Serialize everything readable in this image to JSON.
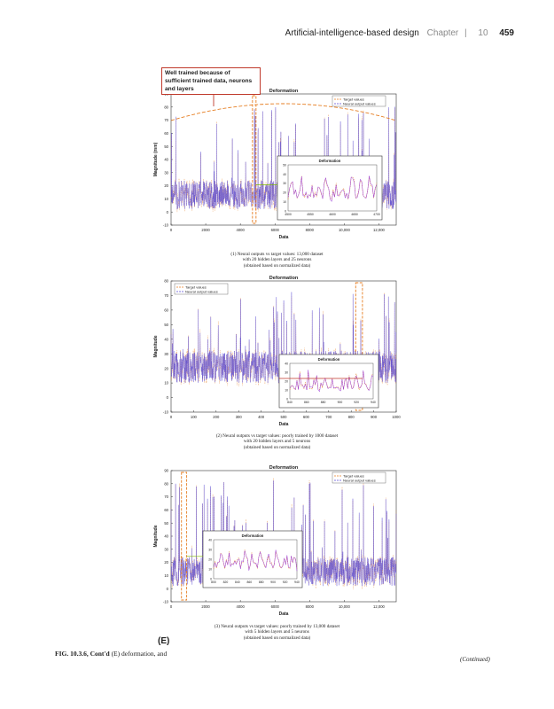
{
  "header": {
    "book_title": "Artificial-intelligence-based design",
    "chapter_label": "Chapter",
    "chapter_number": "10",
    "page_number": "459"
  },
  "annotation": "Well trained because of sufficient trained data, neurons and layers",
  "figure": {
    "panel_label": "(E)",
    "caption_prefix": "FIG. 10.3.6, Cont'd",
    "caption_text": "(E) deformation, and",
    "continued": "(Continued)"
  },
  "chart_data": [
    {
      "type": "line",
      "title": "Deformation",
      "xlabel": "Data",
      "ylabel": "Magnitude (mm)",
      "xlim": [
        0,
        13000
      ],
      "ylim": [
        -10,
        90
      ],
      "xticks": [
        "0",
        "2000",
        "4000",
        "6000",
        "8000",
        "10,000",
        "12,000"
      ],
      "yticks": [
        "-10",
        "0",
        "10",
        "20",
        "30",
        "40",
        "50",
        "60",
        "70",
        "80",
        "90"
      ],
      "legend_position": "top-right",
      "series": [
        {
          "name": "Target values",
          "color": "#e67e22"
        },
        {
          "name": "Neural output values",
          "color": "#5b4bd6"
        }
      ],
      "caption": [
        "(1) Neural outputs vs target values: 13,000 dataset",
        "with 20 hidden layers and 25 neurons",
        "(obtained based on normalized data)"
      ],
      "inset": {
        "title": "Deformation",
        "xticks": [
          "4500",
          "4550",
          "4600",
          "4650",
          "4700"
        ],
        "yticks": [
          "0",
          "10",
          "20",
          "30",
          "40",
          "50"
        ],
        "ylim": [
          0,
          50
        ]
      }
    },
    {
      "type": "line",
      "title": "Deformation",
      "xlabel": "Data",
      "ylabel": "Magnitude",
      "xlim": [
        0,
        1000
      ],
      "ylim": [
        -10,
        80
      ],
      "xticks": [
        "0",
        "100",
        "200",
        "300",
        "400",
        "500",
        "600",
        "700",
        "800",
        "900",
        "1000"
      ],
      "yticks": [
        "-10",
        "0",
        "10",
        "20",
        "30",
        "40",
        "50",
        "60",
        "70",
        "80"
      ],
      "legend_position": "top-left",
      "series": [
        {
          "name": "Target values",
          "color": "#e67e22"
        },
        {
          "name": "Neural output values",
          "color": "#5b4bd6"
        }
      ],
      "caption": [
        "(2) Neural outputs vs target values: poorly trained by 1000 dataset",
        "with 20 hidden layers and 5 neurons",
        "(obtained based on normalized data)"
      ],
      "inset": {
        "title": "Deformation",
        "xticks": [
          "840",
          "860",
          "880",
          "900",
          "920",
          "940"
        ],
        "yticks": [
          "0",
          "10",
          "20",
          "30",
          "40"
        ],
        "ylim": [
          0,
          40
        ]
      }
    },
    {
      "type": "line",
      "title": "Deformation",
      "xlabel": "Data",
      "ylabel": "Magnitude",
      "xlim": [
        0,
        13000
      ],
      "ylim": [
        -10,
        90
      ],
      "xticks": [
        "0",
        "2000",
        "4000",
        "6000",
        "8000",
        "10,000",
        "12,000"
      ],
      "yticks": [
        "-10",
        "0",
        "10",
        "20",
        "30",
        "40",
        "50",
        "60",
        "70",
        "80",
        "90"
      ],
      "legend_position": "top-right",
      "series": [
        {
          "name": "Target values",
          "color": "#e67e22"
        },
        {
          "name": "Neural output values",
          "color": "#5b4bd6"
        }
      ],
      "caption": [
        "(3) Neural outputs vs target values: poorly trained by 13,000 dataset",
        "with 5 hidden layers and 5 neurons",
        "(obtained based on normalized data)"
      ],
      "inset": {
        "title": "Deformation",
        "xticks": [
          "800",
          "820",
          "840",
          "860",
          "880",
          "900",
          "920",
          "940"
        ],
        "yticks": [
          "0",
          "10",
          "20",
          "30",
          "40"
        ],
        "ylim": [
          0,
          40
        ]
      }
    }
  ]
}
